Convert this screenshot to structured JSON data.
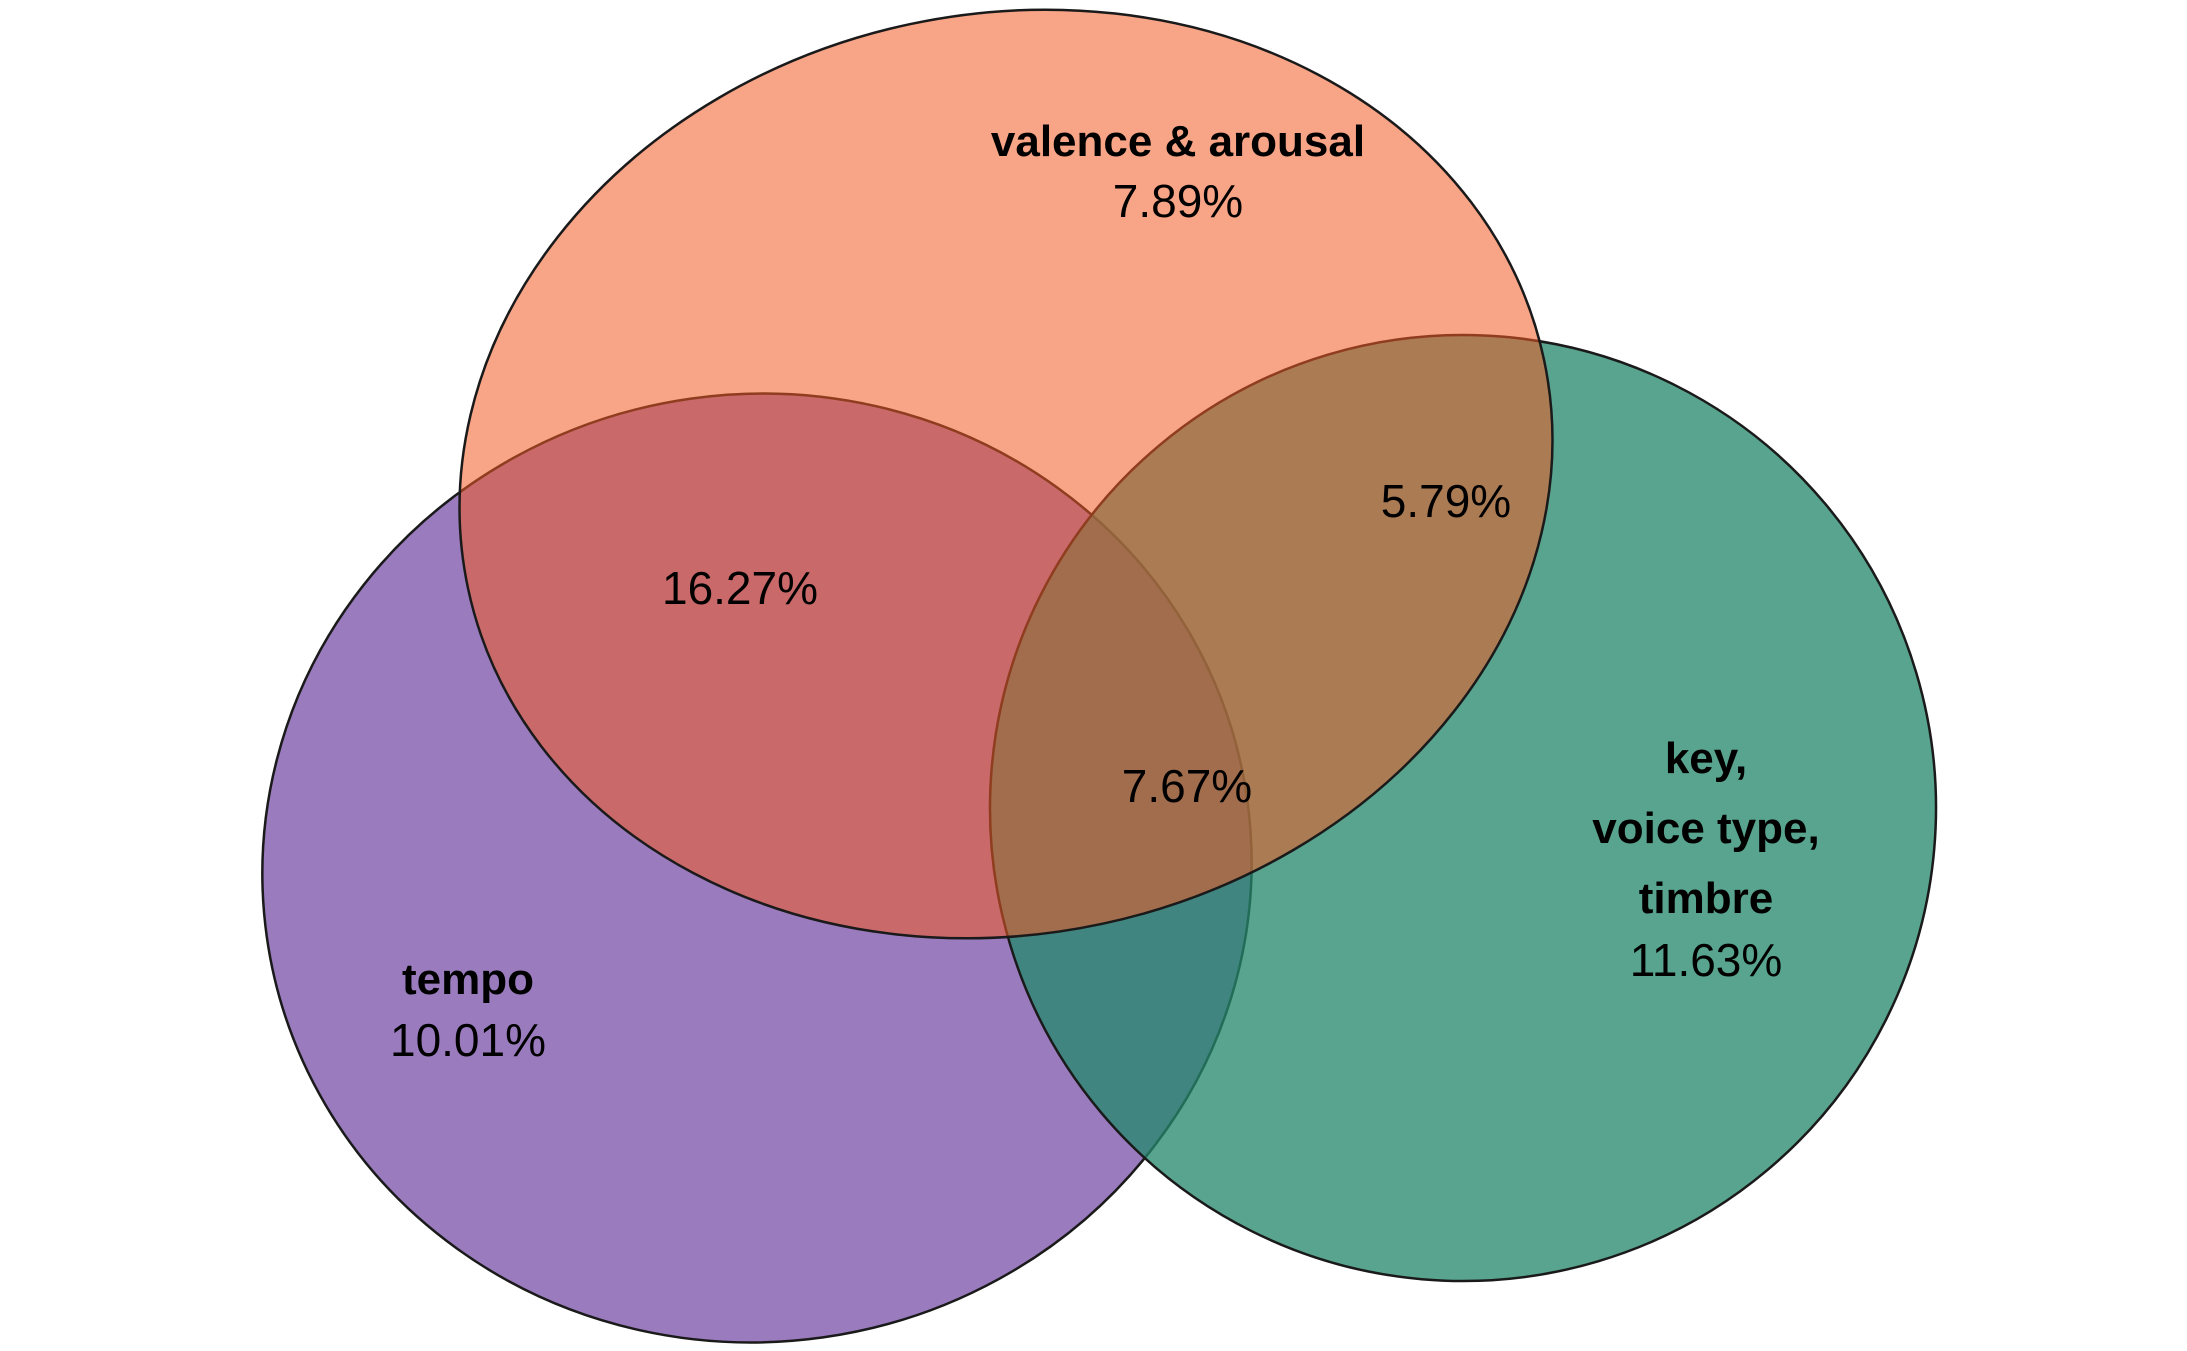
{
  "sets": {
    "valence_arousal": {
      "name": "valence & arousal",
      "only_pct": "7.89%",
      "color": "#F05A24"
    },
    "tempo": {
      "name": "tempo",
      "only_pct": "10.01%",
      "color": "#7E57AC"
    },
    "key_voice_timbre": {
      "name_lines": [
        "key,",
        "voice type,",
        "timbre"
      ],
      "only_pct": "11.63%",
      "color": "#23876A"
    }
  },
  "intersections": {
    "valence_tempo": "16.27%",
    "valence_key": "5.79%",
    "all_three": "7.67%"
  }
}
